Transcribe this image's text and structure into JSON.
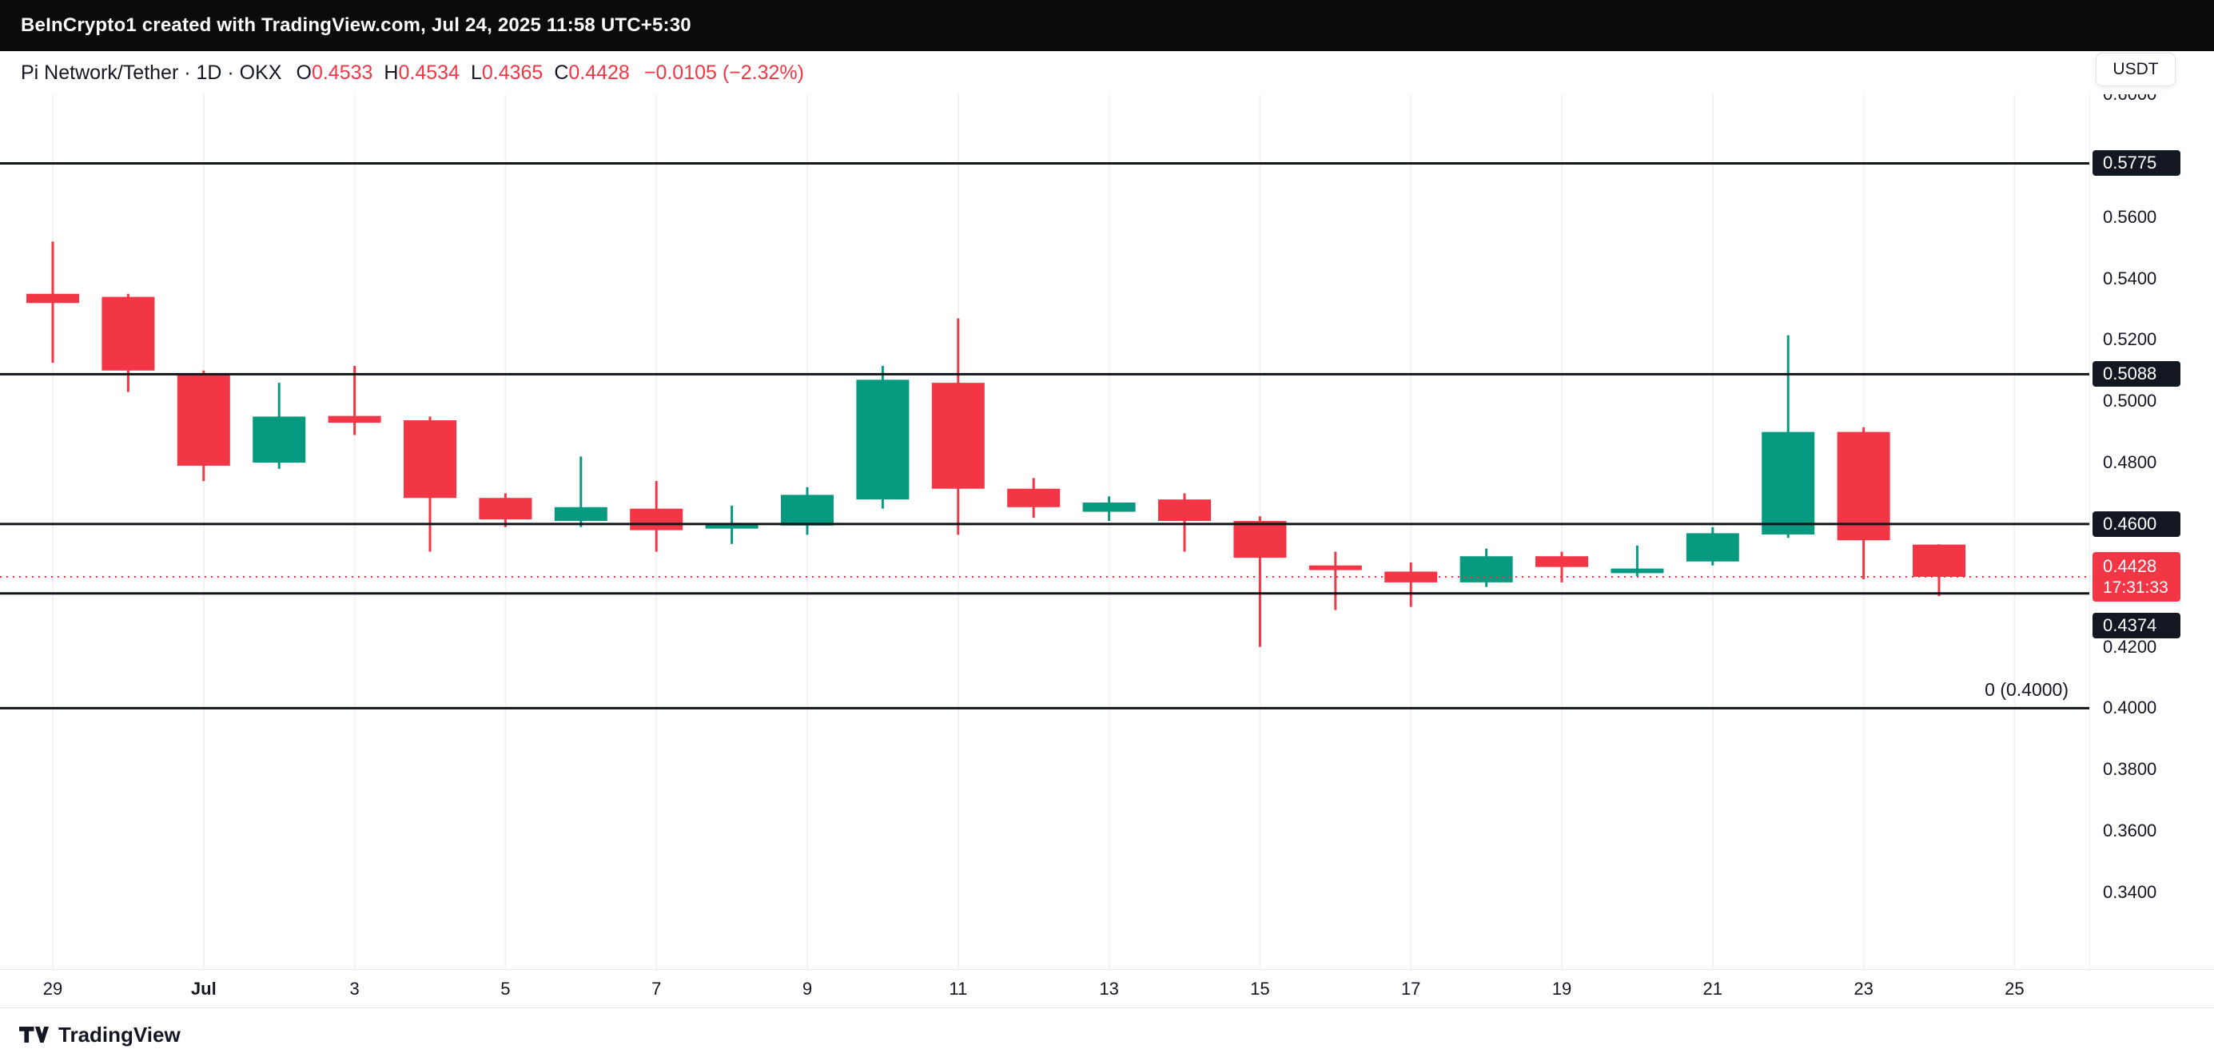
{
  "top_bar": {
    "text": "BeInCrypto1 created with TradingView.com, Jul 24, 2025 11:58 UTC+5:30"
  },
  "header": {
    "symbol_title": "Pi Network/Tether · 1D · OKX",
    "ohlc": [
      {
        "label": "O",
        "value": "0.4533"
      },
      {
        "label": "H",
        "value": "0.4534"
      },
      {
        "label": "L",
        "value": "0.4365"
      },
      {
        "label": "C",
        "value": "0.4428"
      }
    ],
    "change": "−0.0105 (−2.32%)",
    "currency_button": "USDT"
  },
  "footer": {
    "logo_text": "TradingView"
  },
  "colors": {
    "up": "#089981",
    "down": "#f23645",
    "line": "#111418",
    "grid": "#f0f2f5",
    "badge_bg": "#131722"
  },
  "chart_data": {
    "type": "candlestick",
    "symbol": "Pi Network/Tether",
    "exchange": "OKX",
    "interval": "1D",
    "quote_currency": "USDT",
    "ylim": [
      0.315,
      0.6
    ],
    "candles": [
      {
        "t": "Jun 29",
        "o": 0.535,
        "h": 0.552,
        "l": 0.5125,
        "c": 0.532
      },
      {
        "t": "Jun 30",
        "o": 0.534,
        "h": 0.535,
        "l": 0.503,
        "c": 0.51
      },
      {
        "t": "Jul 1",
        "o": 0.509,
        "h": 0.51,
        "l": 0.474,
        "c": 0.479
      },
      {
        "t": "Jul 2",
        "o": 0.48,
        "h": 0.506,
        "l": 0.478,
        "c": 0.495
      },
      {
        "t": "Jul 3",
        "o": 0.4952,
        "h": 0.5115,
        "l": 0.489,
        "c": 0.493
      },
      {
        "t": "Jul 4",
        "o": 0.4938,
        "h": 0.495,
        "l": 0.451,
        "c": 0.4685
      },
      {
        "t": "Jul 5",
        "o": 0.4685,
        "h": 0.47,
        "l": 0.459,
        "c": 0.4615
      },
      {
        "t": "Jul 6",
        "o": 0.461,
        "h": 0.482,
        "l": 0.459,
        "c": 0.4655
      },
      {
        "t": "Jul 7",
        "o": 0.465,
        "h": 0.474,
        "l": 0.451,
        "c": 0.458
      },
      {
        "t": "Jul 8",
        "o": 0.4585,
        "h": 0.466,
        "l": 0.4535,
        "c": 0.46
      },
      {
        "t": "Jul 9",
        "o": 0.4595,
        "h": 0.472,
        "l": 0.4565,
        "c": 0.4695
      },
      {
        "t": "Jul 10",
        "o": 0.468,
        "h": 0.5115,
        "l": 0.465,
        "c": 0.507
      },
      {
        "t": "Jul 11",
        "o": 0.506,
        "h": 0.527,
        "l": 0.4565,
        "c": 0.4715
      },
      {
        "t": "Jul 12",
        "o": 0.4715,
        "h": 0.475,
        "l": 0.462,
        "c": 0.4655
      },
      {
        "t": "Jul 13",
        "o": 0.464,
        "h": 0.469,
        "l": 0.461,
        "c": 0.467
      },
      {
        "t": "Jul 14",
        "o": 0.468,
        "h": 0.47,
        "l": 0.451,
        "c": 0.461
      },
      {
        "t": "Jul 15",
        "o": 0.461,
        "h": 0.4625,
        "l": 0.42,
        "c": 0.449
      },
      {
        "t": "Jul 16",
        "o": 0.4465,
        "h": 0.451,
        "l": 0.432,
        "c": 0.445
      },
      {
        "t": "Jul 17",
        "o": 0.4445,
        "h": 0.4475,
        "l": 0.433,
        "c": 0.441
      },
      {
        "t": "Jul 18",
        "o": 0.441,
        "h": 0.452,
        "l": 0.4395,
        "c": 0.4495
      },
      {
        "t": "Jul 19",
        "o": 0.4495,
        "h": 0.451,
        "l": 0.441,
        "c": 0.446
      },
      {
        "t": "Jul 20",
        "o": 0.444,
        "h": 0.453,
        "l": 0.443,
        "c": 0.4455
      },
      {
        "t": "Jul 21",
        "o": 0.4478,
        "h": 0.459,
        "l": 0.4465,
        "c": 0.457
      },
      {
        "t": "Jul 22",
        "o": 0.4566,
        "h": 0.5215,
        "l": 0.4555,
        "c": 0.49
      },
      {
        "t": "Jul 23",
        "o": 0.49,
        "h": 0.4915,
        "l": 0.442,
        "c": 0.4547
      },
      {
        "t": "Jul 24",
        "o": 0.4533,
        "h": 0.4534,
        "l": 0.4365,
        "c": 0.4428
      }
    ],
    "y_ticks": [
      0.6,
      0.56,
      0.54,
      0.52,
      0.5,
      0.48,
      0.42,
      0.4,
      0.38,
      0.36,
      0.34
    ],
    "x_ticks": [
      {
        "i": 0,
        "label": "29"
      },
      {
        "i": 2,
        "label": "Jul",
        "bold": true
      },
      {
        "i": 4,
        "label": "3"
      },
      {
        "i": 6,
        "label": "5"
      },
      {
        "i": 8,
        "label": "7"
      },
      {
        "i": 10,
        "label": "9"
      },
      {
        "i": 12,
        "label": "11"
      },
      {
        "i": 14,
        "label": "13"
      },
      {
        "i": 16,
        "label": "15"
      },
      {
        "i": 18,
        "label": "17"
      },
      {
        "i": 20,
        "label": "19"
      },
      {
        "i": 22,
        "label": "21"
      },
      {
        "i": 24,
        "label": "23"
      },
      {
        "i": 26,
        "label": "25"
      }
    ],
    "levels": [
      {
        "price": 0.5775,
        "badge": "0.5775"
      },
      {
        "price": 0.5088,
        "badge": "0.5088"
      },
      {
        "price": 0.46,
        "badge": "0.4600"
      },
      {
        "price": 0.4374,
        "badge": "0.4374",
        "badge_shift": 40
      },
      {
        "price": 0.4,
        "annotation": "0 (0.4000)"
      }
    ],
    "last_price": {
      "price": 0.4428,
      "badge": "0.4428",
      "countdown": "17:31:33"
    }
  }
}
